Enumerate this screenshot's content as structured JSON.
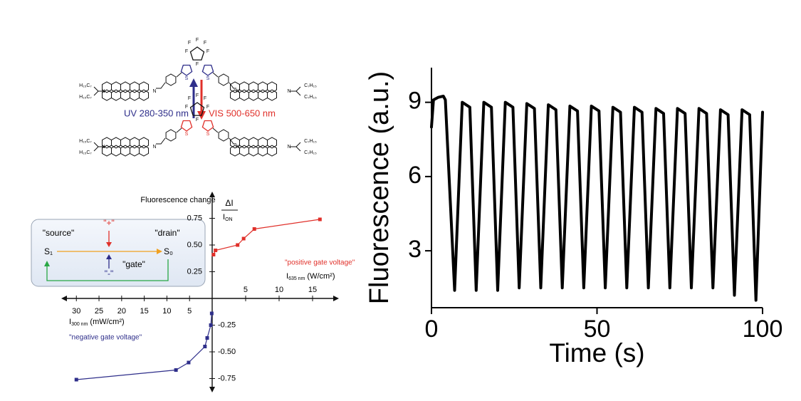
{
  "chart_data": [
    {
      "type": "line",
      "xlabel": "Time (s)",
      "ylabel": "Fluorescence (a.u.)",
      "x": [
        0,
        0.6,
        2,
        3.6,
        4.2,
        7,
        9.3,
        11.6,
        13.5,
        15.8,
        18.1,
        20,
        22.3,
        24.6,
        26.5,
        28.8,
        31.1,
        33,
        35.3,
        37.6,
        39.5,
        41.8,
        44.1,
        46,
        48.3,
        50.6,
        52.5,
        54.8,
        57.1,
        59,
        61.3,
        63.6,
        65.5,
        67.8,
        70.1,
        72,
        74.3,
        76.6,
        78.5,
        80.8,
        83.1,
        85,
        87.3,
        89.6,
        91.5,
        93.8,
        96.1,
        98,
        100
      ],
      "values": [
        8.0,
        9.1,
        9.2,
        9.25,
        9.1,
        1.4,
        9.0,
        8.8,
        1.4,
        9.0,
        8.8,
        1.4,
        9.0,
        8.8,
        1.5,
        8.95,
        8.75,
        1.5,
        8.9,
        8.7,
        1.5,
        8.85,
        8.65,
        1.5,
        8.85,
        8.65,
        1.5,
        8.8,
        8.6,
        1.5,
        8.8,
        8.6,
        1.5,
        8.75,
        8.55,
        1.5,
        8.75,
        8.55,
        1.5,
        8.75,
        8.55,
        1.5,
        8.7,
        8.5,
        1.2,
        8.7,
        8.5,
        1.0,
        8.6
      ],
      "color": "#000000",
      "xlim": [
        0,
        100
      ],
      "xticks": [
        0,
        50,
        100
      ],
      "ylim": [
        0.7,
        10.4
      ],
      "yticks": [
        3,
        6,
        9
      ]
    },
    {
      "type": "line",
      "title": "Fluorescence change",
      "ylabel": {
        "numerator": "ΔI",
        "denominator": "I",
        "sub": "ON"
      },
      "xlabel": {
        "main": "I",
        "sub": "635 nm",
        "unit": "(W/cm²)"
      },
      "x2label": {
        "main": "I",
        "sub": "300 nm",
        "unit": "(mW/cm²)"
      },
      "annotations": [
        "\"positive gate voltage\"",
        "\"negative gate voltage\""
      ],
      "xlim": [
        0,
        18.3
      ],
      "xticks": [
        5,
        10,
        15
      ],
      "x2lim": [
        0,
        32.4
      ],
      "x2ticks": [
        5,
        10,
        15,
        20,
        25,
        30
      ],
      "ylim": [
        -0.84,
        0.96
      ],
      "yticks": [
        {
          "value": -0.75,
          "label": "-0.75"
        },
        {
          "value": -0.5,
          "label": "-0.50"
        },
        -0.25,
        0.25,
        {
          "value": 0.5,
          "label": "0.50"
        },
        0.75
      ],
      "series": [
        {
          "color": "#e0302a",
          "x": [
            0.2,
            0.5,
            3.8,
            4.7,
            6.3,
            16.1
          ],
          "values": [
            0.41,
            0.45,
            0.5,
            0.56,
            0.65,
            0.74
          ]
        },
        {
          "color": "#2e2e8a",
          "axis": "x2",
          "x": [
            30,
            8.0,
            5.2,
            1.6,
            1.1,
            0.3,
            0.1
          ],
          "values": [
            -0.76,
            -0.67,
            -0.6,
            -0.45,
            -0.37,
            -0.25,
            -0.14
          ]
        }
      ]
    }
  ],
  "diagram": {
    "source": "\"source\"",
    "drain": "\"drain\"",
    "s1": "S₁",
    "s0": "S₀",
    "plus": "\"+\"",
    "minus": "\"-\"",
    "gate": "\"gate\""
  },
  "switching": {
    "uv": "UV 280-350 nm",
    "vis": "VIS 500-650 nm"
  },
  "structures": [
    {
      "labels": [
        "F",
        "F",
        "F",
        "F",
        "F",
        "F",
        "S",
        "S",
        "H₁₅C₇",
        "H₁₅C₇",
        "C₇H₁₅",
        "C₇H₁₅",
        "N",
        "N",
        "N",
        "N"
      ]
    },
    {
      "labels": [
        "F",
        "F",
        "F",
        "F",
        "F",
        "F",
        "S",
        "S",
        "H₁₅C₇",
        "H₁₅C₇",
        "C₇H₁₅",
        "C₇H₁₅",
        "N",
        "N",
        "N",
        "N"
      ]
    }
  ]
}
